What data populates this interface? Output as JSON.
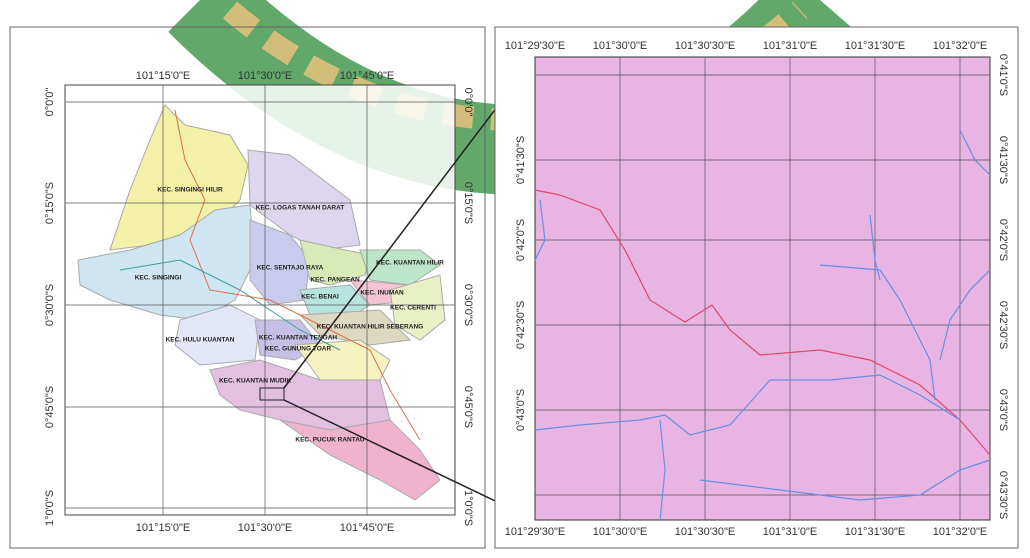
{
  "overview_map": {
    "lon_labels": [
      "101°15'0\"E",
      "101°30'0\"E",
      "101°45'0\"E"
    ],
    "lat_labels": [
      "0°0'0\"",
      "0°15'0\"S",
      "0°30'0\"S",
      "0°45'0\"S",
      "1°0'0\"S"
    ],
    "districts": [
      "KEC. SINGINGI HILIR",
      "KEC. LOGAS TANAH DARAT",
      "KEC. SENTAJO RAYA",
      "KEC. KUANTAN HILIR",
      "KEC. PANGEAN",
      "KEC. SINGINGI",
      "KEC. INUMAN",
      "KEC. CERENTI",
      "KEC. BENAI",
      "KEC. KUANTAN HILIR SEBERANG",
      "KEC. HULU KUANTAN",
      "KEC. KUANTAN TENGAH",
      "KEC. GUNUNG TOAR",
      "KEC. KUANTAN MUDIK",
      "KEC. PUCUK RANTAU"
    ]
  },
  "detail_map": {
    "lon_labels": [
      "101°29'30\"E",
      "101°30'0\"E",
      "101°30'30\"E",
      "101°31'0\"E",
      "101°31'30\"E",
      "101°32'0\"E"
    ],
    "lat_labels_right": [
      "0°41'0\"S",
      "0°41'30\"S",
      "0°42'0\"S",
      "0°42'30\"S",
      "0°43'0\"S",
      "0°43'30\"S"
    ],
    "lat_labels_left": [
      "0°41'30\"S",
      "0°42'0\"S",
      "0°42'30\"S",
      "0°43'0\"S"
    ]
  }
}
